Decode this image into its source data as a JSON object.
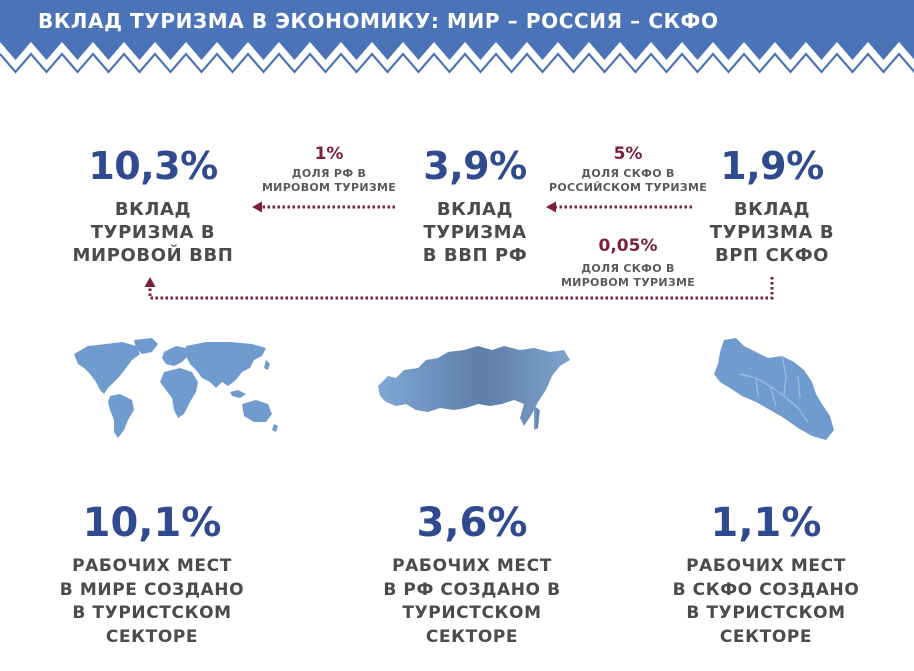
{
  "header": {
    "title": "ВКЛАД ТУРИЗМА В ЭКОНОМИКУ: МИР – РОССИЯ – СКФО"
  },
  "stats": {
    "world": {
      "value": "10,3%",
      "label": [
        "ВКЛАД",
        "ТУРИЗМА В",
        "МИРОВОЙ ВВП"
      ]
    },
    "russia": {
      "value": "3,9%",
      "label": [
        "ВКЛАД",
        "ТУРИЗМА",
        "В ВВП РФ"
      ]
    },
    "skfo": {
      "value": "1,9%",
      "label": [
        "ВКЛАД",
        "ТУРИЗМА В",
        "ВРП СКФО"
      ]
    }
  },
  "shares": {
    "rf_world": {
      "value": "1%",
      "note": [
        "ДОЛЯ РФ В",
        "МИРОВОМ ТУРИЗМЕ"
      ]
    },
    "skfo_rf": {
      "value": "5%",
      "note": [
        "ДОЛЯ СКФО В",
        "РОССИЙСКОМ ТУРИЗМЕ"
      ]
    },
    "skfo_world": {
      "value": "0,05%",
      "note": [
        "ДОЛЯ СКФО В",
        "МИРОВОМ ТУРИЗМЕ"
      ]
    }
  },
  "maps": {
    "world": "world-map-icon",
    "russia": "russia-map-icon",
    "skfo": "skfo-map-icon"
  },
  "jobs": {
    "world": {
      "value": "10,1%",
      "label": [
        "РАБОЧИХ МЕСТ",
        "В МИРЕ СОЗДАНО",
        "В ТУРИСТСКОМ",
        "СЕКТОРЕ"
      ]
    },
    "russia": {
      "value": "3,6%",
      "label": [
        "РАБОЧИХ МЕСТ",
        "В РФ СОЗДАНО В",
        "ТУРИСТСКОМ",
        "СЕКТОРЕ"
      ]
    },
    "skfo": {
      "value": "1,1%",
      "label": [
        "РАБОЧИХ МЕСТ",
        "В СКФО СОЗДАНО",
        "В ТУРИСТСКОМ",
        "СЕКТОРЕ"
      ]
    }
  },
  "colors": {
    "banner": "#4b74b8",
    "primary": "#2f4a8e",
    "accent": "#7a1f3d",
    "text": "#4b4b4b",
    "map": "#6f9bcf"
  }
}
